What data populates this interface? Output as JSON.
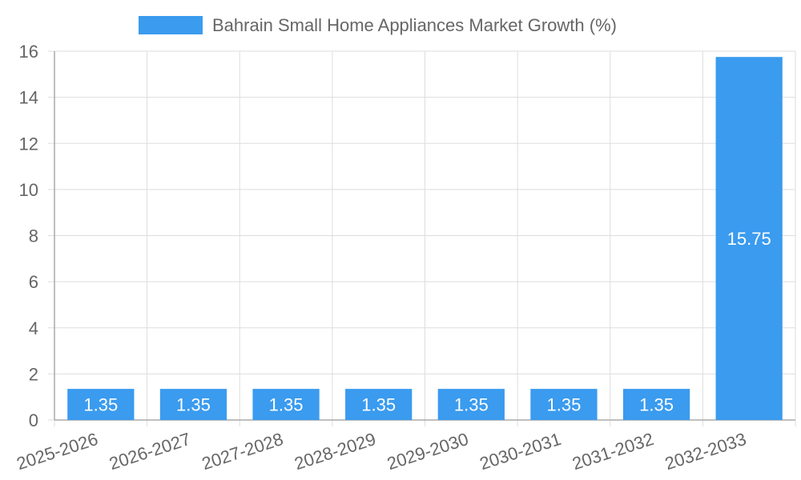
{
  "chart_data": {
    "type": "bar",
    "legend": "Bahrain Small Home Appliances Market Growth (%)",
    "legend_position": "top",
    "categories": [
      "2025-2026",
      "2026-2027",
      "2027-2028",
      "2028-2029",
      "2029-2030",
      "2030-2031",
      "2031-2032",
      "2032-2033"
    ],
    "values": [
      1.35,
      1.35,
      1.35,
      1.35,
      1.35,
      1.35,
      1.35,
      15.75
    ],
    "data_labels": [
      "1.35",
      "1.35",
      "1.35",
      "1.35",
      "1.35",
      "1.35",
      "1.35",
      "15.75"
    ],
    "ylim": [
      0,
      16
    ],
    "y_ticks": [
      "0",
      "2",
      "4",
      "6",
      "8",
      "10",
      "12",
      "14",
      "16"
    ],
    "grid": true,
    "colors": {
      "bar": "#3a9bef",
      "grid": "#dddddd",
      "axis": "#aaaaaa",
      "text": "#666666"
    }
  }
}
